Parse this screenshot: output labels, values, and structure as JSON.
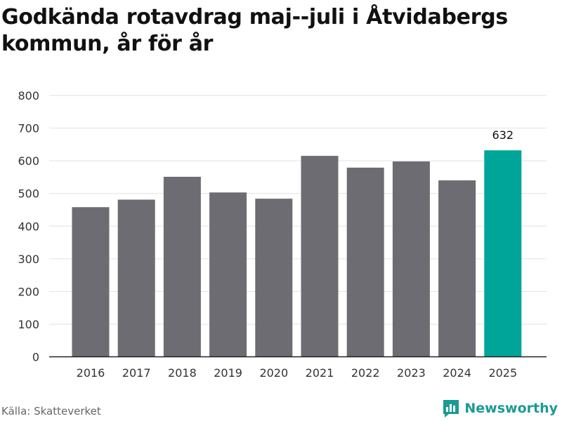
{
  "title": "Godkända rotavdrag maj--juli i Åtvidabergs kommun, år för år",
  "source": "Källa: Skatteverket",
  "brand": {
    "name": "Newsworthy",
    "icon": "bar-chart-icon"
  },
  "colors": {
    "bar": "#6d6c72",
    "highlight": "#00a59a",
    "grid": "#e2e2e2",
    "axis": "#222222",
    "text": "#333333",
    "brand": "#1c9a94"
  },
  "chart_data": {
    "type": "bar",
    "title": "Godkända rotavdrag maj--juli i Åtvidabergs kommun, år för år",
    "xlabel": "",
    "ylabel": "",
    "ylim": [
      0,
      800
    ],
    "yticks": [
      0,
      100,
      200,
      300,
      400,
      500,
      600,
      700,
      800
    ],
    "grid": true,
    "legend": "none",
    "categories": [
      "2016",
      "2017",
      "2018",
      "2019",
      "2020",
      "2021",
      "2022",
      "2023",
      "2024",
      "2025"
    ],
    "values": [
      458,
      481,
      551,
      503,
      484,
      615,
      579,
      598,
      540,
      632
    ],
    "highlight": {
      "category": "2025",
      "label": "632"
    }
  }
}
